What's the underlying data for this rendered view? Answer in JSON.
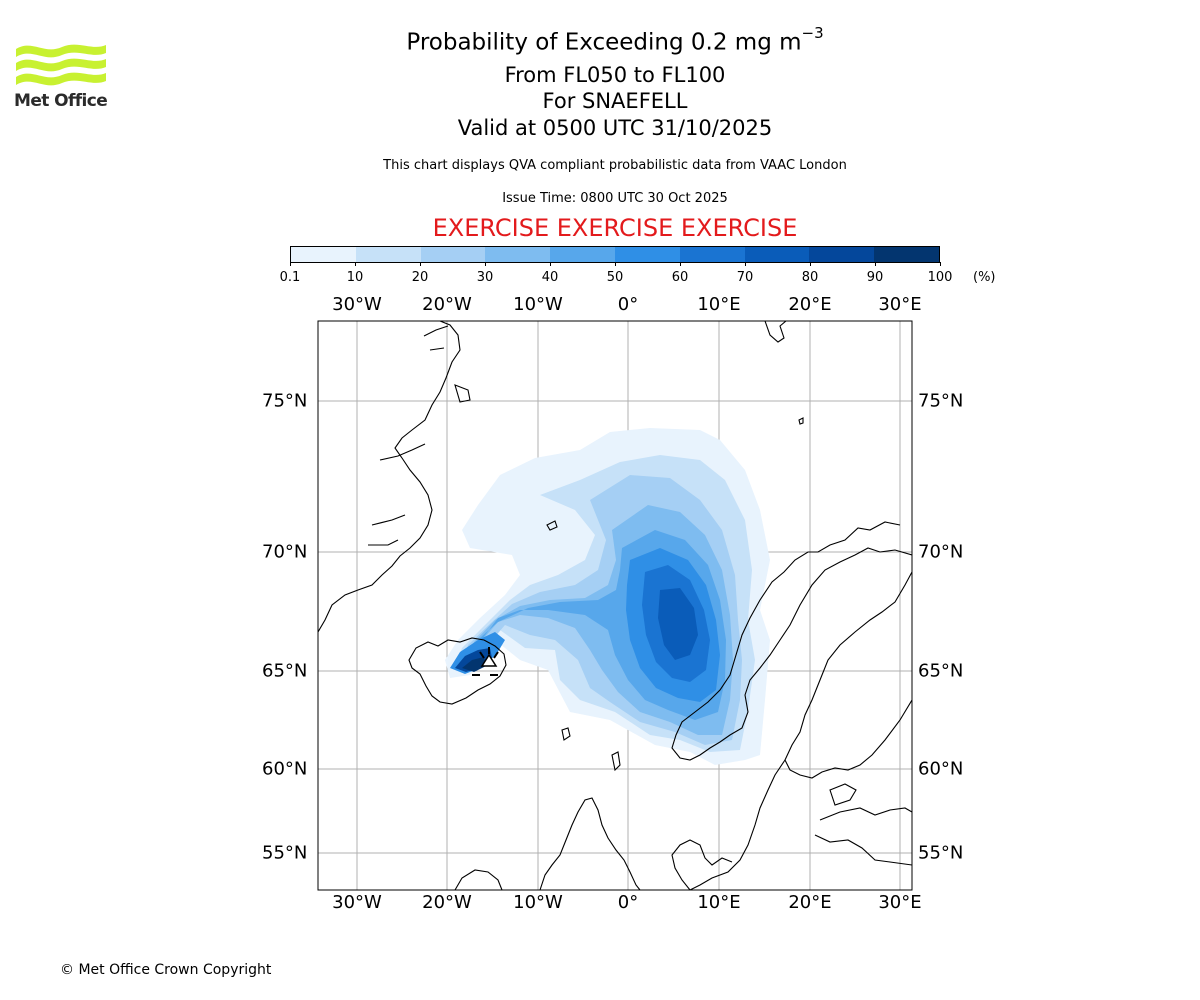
{
  "header": {
    "logo_text": "Met Office",
    "title_main": "Probability of Exceeding 0.2 mg m",
    "title_exponent": "−3",
    "levels": "From FL050 to FL100",
    "volcano": "For SNAEFELL",
    "valid": "Valid at 0500 UTC 31/10/2025",
    "description": "This chart displays QVA compliant probabilistic data from VAAC London",
    "issue": "Issue Time: 0800 UTC 30 Oct 2025",
    "exercise": "EXERCISE EXERCISE EXERCISE",
    "exercise_color": "#e31a1c"
  },
  "colorbar": {
    "ticks": [
      "0.1",
      "10",
      "20",
      "30",
      "40",
      "50",
      "60",
      "70",
      "80",
      "90",
      "100"
    ],
    "unit": "(%)",
    "colors": [
      "#e8f3fd",
      "#c6e1f8",
      "#a5cff4",
      "#7ebcf0",
      "#57a7eb",
      "#2f8fe6",
      "#1a74d2",
      "#0a5cb9",
      "#04479b",
      "#03356f"
    ]
  },
  "map": {
    "lon_labels": [
      "30°W",
      "20°W",
      "10°W",
      "0°",
      "10°E",
      "20°E",
      "30°E"
    ],
    "lat_labels": [
      "75°N",
      "70°N",
      "65°N",
      "60°N",
      "55°N"
    ],
    "gridline_color": "#b0b0b0",
    "coastline_color": "#000000",
    "volcano_marker": "triangle-marker"
  },
  "footer": {
    "copyright": "© Met Office Crown Copyright"
  }
}
